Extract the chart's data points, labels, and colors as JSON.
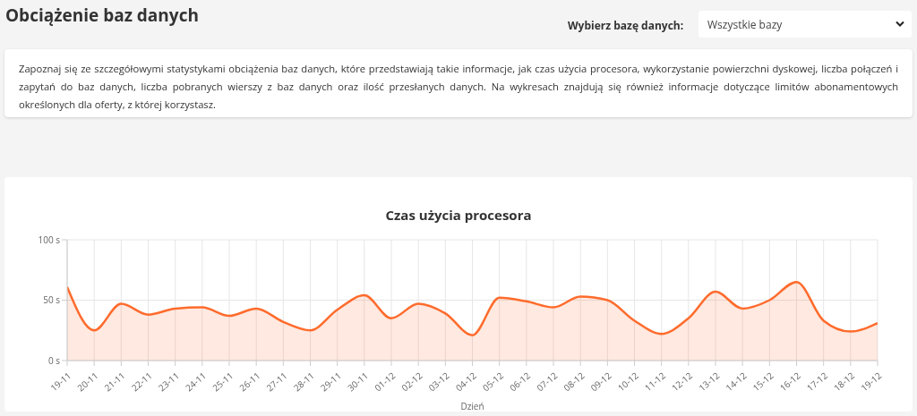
{
  "chart_data": {
    "type": "area",
    "title": "Czas użycia procesora",
    "xlabel": "Dzień",
    "annotations": [
      "Obciążenie baz danych",
      "Wybierz bazę danych:",
      "Wszystkie bazy",
      "Zapoznaj się ze szczegółowymi statystykami obciążenia baz danych, które przedstawiają takie informacje, jak czas użycia procesora, wykorzystanie powierzchni dyskowej, liczba połączeń i zapytań do baz danych, liczba pobranych wierszy z baz danych oraz ilość przesłanych danych. Na wykresach znajdują się również informacje dotyczące limitów abonamentowych określonych dla oferty, z której korzystasz."
    ],
    "categories": [
      "19-11",
      "20-11",
      "21-11",
      "22-11",
      "23-11",
      "24-11",
      "25-11",
      "26-11",
      "27-11",
      "28-11",
      "29-11",
      "30-11",
      "01-12",
      "02-12",
      "03-12",
      "04-12",
      "05-12",
      "06-12",
      "07-12",
      "08-12",
      "09-12",
      "10-12",
      "11-12",
      "12-12",
      "13-12",
      "14-12",
      "15-12",
      "16-12",
      "17-12",
      "18-12",
      "19-12"
    ],
    "values": [
      61,
      25,
      47,
      38,
      43,
      44,
      37,
      43,
      32,
      25,
      42,
      54,
      35,
      47,
      39,
      21,
      52,
      49,
      44,
      53,
      50,
      33,
      22,
      35,
      57,
      43,
      50,
      65,
      33,
      24,
      31
    ],
    "color": "#ff6b2c",
    "ylim": [
      0,
      100
    ],
    "yticks": [
      {
        "value": 0,
        "label": "0 s"
      },
      {
        "value": 50,
        "label": "50 s"
      },
      {
        "value": 100,
        "label": "100 s"
      }
    ],
    "grid": true
  }
}
